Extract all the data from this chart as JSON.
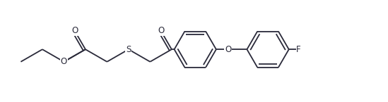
{
  "bg_color": "#ffffff",
  "line_color": "#2a2a3a",
  "font_size": 8.5,
  "line_width": 1.3,
  "figsize": [
    5.49,
    1.45
  ],
  "dpi": 100,
  "xlim": [
    -0.2,
    10.8
  ],
  "ylim": [
    0.0,
    2.2
  ]
}
